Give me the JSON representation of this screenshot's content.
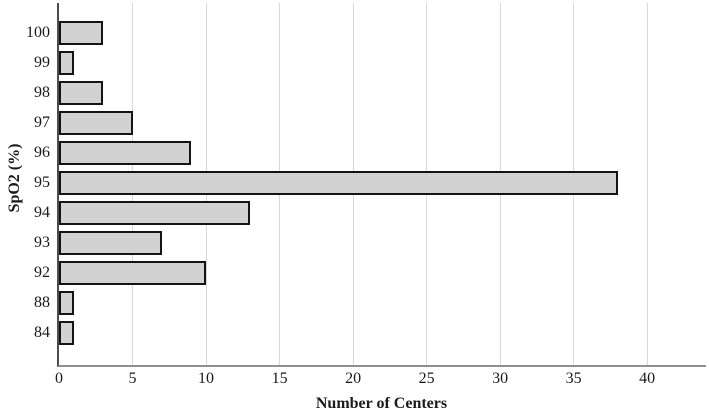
{
  "chart_data": {
    "type": "bar",
    "orientation": "horizontal",
    "title": "",
    "xlabel": "Number of Centers",
    "ylabel": "SpO2 (%)",
    "categories": [
      "100",
      "99",
      "98",
      "97",
      "96",
      "95",
      "94",
      "93",
      "92",
      "88",
      "84"
    ],
    "values": [
      3,
      1,
      3,
      5,
      9,
      38,
      13,
      7,
      10,
      1,
      1
    ],
    "xticks": [
      0,
      5,
      10,
      15,
      20,
      25,
      30,
      35,
      40
    ],
    "xlim": [
      0,
      44
    ],
    "grid": "vertical-gridlines-every-5",
    "legend": "none",
    "colors": {
      "bar_fill": "#d2d2d2",
      "bar_border": "#141414",
      "gridline": "#d8d8d8",
      "y_axis_line": "#4d4d4d",
      "x_axis_line": "#8f8f8f",
      "text": "#1a1a1a",
      "background": "#ffffff"
    }
  }
}
